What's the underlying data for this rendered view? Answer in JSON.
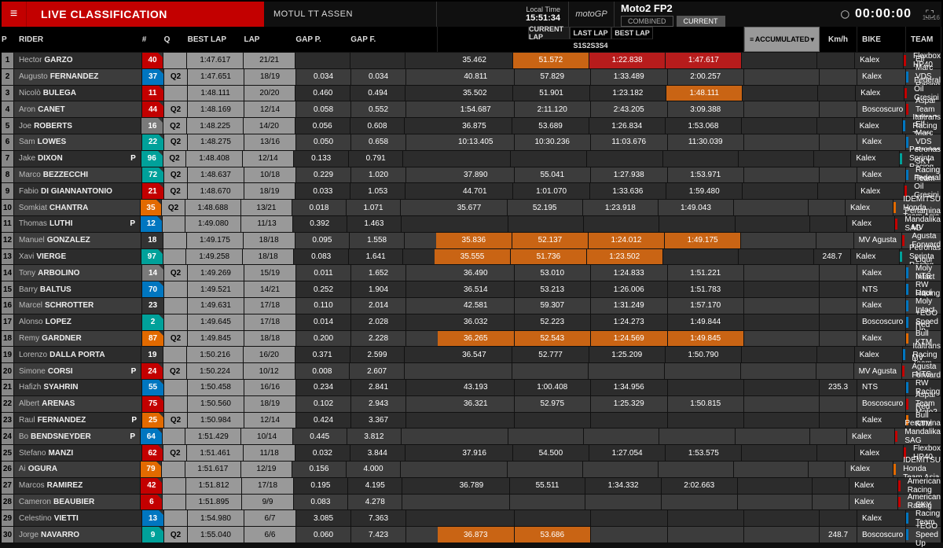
{
  "header": {
    "live_label": "LIVE CLASSIFICATION",
    "event": "MOTUL TT ASSEN",
    "localtime_label": "Local Time",
    "localtime": "15:51:34",
    "brand": "motoGP",
    "session": "Moto2 FP2",
    "tab_combined": "COMBINED",
    "tab_current": "CURRENT",
    "clock": "00:00:00",
    "version": "1.8.16"
  },
  "columns": {
    "p": "P",
    "rider": "RIDER",
    "num": "#",
    "q": "Q",
    "best": "BEST LAP",
    "lap": "LAP",
    "gapp": "GAP P.",
    "gapf": "GAP F.",
    "tab_cur": "CURRENT LAP",
    "tab_last": "LAST LAP",
    "tab_best": "BEST LAP",
    "s1": "S1",
    "s2": "S2",
    "s3": "S3",
    "s4": "S4",
    "acc": "ACCUMULATED",
    "kmh": "Km/h",
    "bike": "BIKE",
    "team": "TEAM"
  },
  "colors": {
    "num": {
      "red": "#c30000",
      "blue": "#0076c0",
      "teal": "#00a19a",
      "orange": "#e26a00",
      "grey": "#7a7a7a",
      "dark": "#333",
      "yellow": "#c9a400",
      "green": "#2e7d32"
    }
  },
  "rows": [
    {
      "p": 1,
      "first": "Hector",
      "last": "GARZO",
      "pf": "",
      "num": 40,
      "numC": "red",
      "q": "",
      "best": "1:47.617",
      "lap": "21/21",
      "gp": "",
      "gf": "",
      "s": [
        {
          "v": "35.462"
        },
        {
          "v": "51.572",
          "c": "orange"
        },
        {
          "v": "1:22.838",
          "c": "red"
        },
        {
          "v": "1:47.617",
          "c": "red"
        }
      ],
      "kmh": "",
      "bike": "Kalex",
      "team": "Flexbox HP40",
      "bar": "#c30000"
    },
    {
      "p": 2,
      "first": "Augusto",
      "last": "FERNANDEZ",
      "pf": "",
      "num": 37,
      "numC": "blue",
      "q": "Q2",
      "best": "1:47.651",
      "lap": "18/19",
      "gp": "0.034",
      "gf": "0.034",
      "s": [
        {
          "v": "40.811"
        },
        {
          "v": "57.829"
        },
        {
          "v": "1:33.489"
        },
        {
          "v": "2:00.257"
        }
      ],
      "kmh": "",
      "bike": "Kalex",
      "team": "Elf Marc VDS Racing Team",
      "bar": "#0076c0"
    },
    {
      "p": 3,
      "first": "Nicolò",
      "last": "BULEGA",
      "pf": "",
      "num": 11,
      "numC": "red",
      "q": "",
      "best": "1:48.111",
      "lap": "20/20",
      "gp": "0.460",
      "gf": "0.494",
      "s": [
        {
          "v": "35.502"
        },
        {
          "v": "51.901"
        },
        {
          "v": "1:23.182"
        },
        {
          "v": "1:48.111",
          "c": "orange"
        }
      ],
      "kmh": "",
      "bike": "Kalex",
      "team": "Federal Oil Gresini Moto2",
      "bar": "#c30000"
    },
    {
      "p": 4,
      "first": "Aron",
      "last": "CANET",
      "pf": "",
      "num": 44,
      "numC": "red",
      "q": "Q2",
      "best": "1:48.169",
      "lap": "12/14",
      "gp": "0.058",
      "gf": "0.552",
      "s": [
        {
          "v": "1:54.687"
        },
        {
          "v": "2:11.120"
        },
        {
          "v": "2:43.205"
        },
        {
          "v": "3:09.388"
        }
      ],
      "kmh": "",
      "bike": "Boscoscuro",
      "team": "Aspar Team Moto2",
      "bar": "#c30000"
    },
    {
      "p": 5,
      "first": "Joe",
      "last": "ROBERTS",
      "pf": "",
      "num": 16,
      "numC": "grey",
      "q": "Q2",
      "best": "1:48.225",
      "lap": "14/20",
      "gp": "0.056",
      "gf": "0.608",
      "s": [
        {
          "v": "36.875"
        },
        {
          "v": "53.689"
        },
        {
          "v": "1:26.834"
        },
        {
          "v": "1:53.068"
        }
      ],
      "kmh": "",
      "bike": "Kalex",
      "team": "Italtrans Racing Team",
      "bar": "#0076c0"
    },
    {
      "p": 6,
      "first": "Sam",
      "last": "LOWES",
      "pf": "",
      "num": 22,
      "numC": "teal",
      "q": "Q2",
      "best": "1:48.275",
      "lap": "13/16",
      "gp": "0.050",
      "gf": "0.658",
      "s": [
        {
          "v": "10:13.405"
        },
        {
          "v": "10:30.236"
        },
        {
          "v": "11:03.676"
        },
        {
          "v": "11:30.039"
        }
      ],
      "kmh": "",
      "bike": "Kalex",
      "team": "Elf Marc VDS Racing Team",
      "bar": "#0076c0"
    },
    {
      "p": 7,
      "first": "Jake",
      "last": "DIXON",
      "pf": "P",
      "num": 96,
      "numC": "teal",
      "q": "Q2",
      "best": "1:48.408",
      "lap": "12/14",
      "gp": "0.133",
      "gf": "0.791",
      "s": [
        {
          "v": ""
        },
        {
          "v": ""
        },
        {
          "v": ""
        },
        {
          "v": ""
        }
      ],
      "kmh": "",
      "bike": "Kalex",
      "team": "Petronas Sprinta Racing",
      "bar": "#00a19a"
    },
    {
      "p": 8,
      "first": "Marco",
      "last": "BEZZECCHI",
      "pf": "",
      "num": 72,
      "numC": "teal",
      "q": "Q2",
      "best": "1:48.637",
      "lap": "10/18",
      "gp": "0.229",
      "gf": "1.020",
      "s": [
        {
          "v": "37.890"
        },
        {
          "v": "55.041"
        },
        {
          "v": "1:27.938"
        },
        {
          "v": "1:53.971"
        }
      ],
      "kmh": "",
      "bike": "Kalex",
      "team": "SKY Racing Team VR46",
      "bar": "#0076c0"
    },
    {
      "p": 9,
      "first": "Fabio",
      "last": "DI GIANNANTONIO",
      "pf": "",
      "num": 21,
      "numC": "red",
      "q": "Q2",
      "best": "1:48.670",
      "lap": "18/19",
      "gp": "0.033",
      "gf": "1.053",
      "s": [
        {
          "v": "44.701"
        },
        {
          "v": "1:01.070"
        },
        {
          "v": "1:33.636"
        },
        {
          "v": "1:59.480"
        }
      ],
      "kmh": "",
      "bike": "Kalex",
      "team": "Federal Oil Gresini Moto2",
      "bar": "#c30000"
    },
    {
      "p": 10,
      "first": "Somkiat",
      "last": "CHANTRA",
      "pf": "",
      "num": 35,
      "numC": "orange",
      "q": "Q2",
      "best": "1:48.688",
      "lap": "13/21",
      "gp": "0.018",
      "gf": "1.071",
      "s": [
        {
          "v": "35.677"
        },
        {
          "v": "52.195"
        },
        {
          "v": "1:23.918"
        },
        {
          "v": "1:49.043"
        }
      ],
      "kmh": "",
      "bike": "Kalex",
      "team": "IDEMITSU Honda Team Asia",
      "bar": "#e26a00"
    },
    {
      "p": 11,
      "first": "Thomas",
      "last": "LUTHI",
      "pf": "P",
      "num": 12,
      "numC": "blue",
      "q": "",
      "best": "1:49.080",
      "lap": "11/13",
      "gp": "0.392",
      "gf": "1.463",
      "s": [
        {
          "v": ""
        },
        {
          "v": ""
        },
        {
          "v": ""
        },
        {
          "v": ""
        }
      ],
      "kmh": "",
      "bike": "Kalex",
      "team": "Pertamina Mandalika SAG Team",
      "bar": "#c30000"
    },
    {
      "p": 12,
      "first": "Manuel",
      "last": "GONZALEZ",
      "pf": "",
      "num": 18,
      "numC": "dark",
      "q": "",
      "best": "1:49.175",
      "lap": "18/18",
      "gp": "0.095",
      "gf": "1.558",
      "s": [
        {
          "v": "35.836",
          "c": "orange"
        },
        {
          "v": "52.137",
          "c": "orange"
        },
        {
          "v": "1:24.012",
          "c": "orange"
        },
        {
          "v": "1:49.175",
          "c": "orange"
        }
      ],
      "kmh": "",
      "bike": "MV Agusta",
      "team": "MV Agusta Forward Racing",
      "bar": "#c30000"
    },
    {
      "p": 13,
      "first": "Xavi",
      "last": "VIERGE",
      "pf": "",
      "num": 97,
      "numC": "teal",
      "q": "",
      "best": "1:49.258",
      "lap": "18/18",
      "gp": "0.083",
      "gf": "1.641",
      "s": [
        {
          "v": "35.555",
          "c": "orange"
        },
        {
          "v": "51.736",
          "c": "orange"
        },
        {
          "v": "1:23.502",
          "c": "orange"
        },
        {
          "v": ""
        }
      ],
      "kmh": "248.7",
      "bike": "Kalex",
      "team": "Petronas Sprinta Racing",
      "bar": "#00a19a"
    },
    {
      "p": 14,
      "first": "Tony",
      "last": "ARBOLINO",
      "pf": "",
      "num": 14,
      "numC": "grey",
      "q": "Q2",
      "best": "1:49.269",
      "lap": "15/19",
      "gp": "0.011",
      "gf": "1.652",
      "s": [
        {
          "v": "36.490"
        },
        {
          "v": "53.010"
        },
        {
          "v": "1:24.833"
        },
        {
          "v": "1:51.221"
        }
      ],
      "kmh": "",
      "bike": "Kalex",
      "team": "Liqui Moly Intact GP",
      "bar": "#0076c0"
    },
    {
      "p": 15,
      "first": "Barry",
      "last": "BALTUS",
      "pf": "",
      "num": 70,
      "numC": "blue",
      "q": "",
      "best": "1:49.521",
      "lap": "14/21",
      "gp": "0.252",
      "gf": "1.904",
      "s": [
        {
          "v": "36.514"
        },
        {
          "v": "53.213"
        },
        {
          "v": "1:26.006"
        },
        {
          "v": "1:51.783"
        }
      ],
      "kmh": "",
      "bike": "NTS",
      "team": "NTS RW Racing GP",
      "bar": "#0076c0"
    },
    {
      "p": 16,
      "first": "Marcel",
      "last": "SCHROTTER",
      "pf": "",
      "num": 23,
      "numC": "dark",
      "q": "",
      "best": "1:49.631",
      "lap": "17/18",
      "gp": "0.110",
      "gf": "2.014",
      "s": [
        {
          "v": "42.581"
        },
        {
          "v": "59.307"
        },
        {
          "v": "1:31.249"
        },
        {
          "v": "1:57.170"
        }
      ],
      "kmh": "",
      "bike": "Kalex",
      "team": "Liqui Moly Intact GP",
      "bar": "#0076c0"
    },
    {
      "p": 17,
      "first": "Alonso",
      "last": "LOPEZ",
      "pf": "",
      "num": 2,
      "numC": "teal",
      "q": "",
      "best": "1:49.645",
      "lap": "17/18",
      "gp": "0.014",
      "gf": "2.028",
      "s": [
        {
          "v": "36.032"
        },
        {
          "v": "52.223"
        },
        {
          "v": "1:24.273"
        },
        {
          "v": "1:49.844"
        }
      ],
      "kmh": "",
      "bike": "Boscoscuro",
      "team": "+EGO Speed Up",
      "bar": "#0076c0"
    },
    {
      "p": 18,
      "first": "Remy",
      "last": "GARDNER",
      "pf": "",
      "num": 87,
      "numC": "orange",
      "q": "Q2",
      "best": "1:49.845",
      "lap": "18/18",
      "gp": "0.200",
      "gf": "2.228",
      "s": [
        {
          "v": "36.265",
          "c": "orange"
        },
        {
          "v": "52.543",
          "c": "orange"
        },
        {
          "v": "1:24.569",
          "c": "orange"
        },
        {
          "v": "1:49.845",
          "c": "orange"
        }
      ],
      "kmh": "",
      "bike": "Kalex",
      "team": "Red Bull KTM Ajo",
      "bar": "#e26a00"
    },
    {
      "p": 19,
      "first": "Lorenzo",
      "last": "DALLA PORTA",
      "pf": "",
      "num": 19,
      "numC": "dark",
      "q": "",
      "best": "1:50.216",
      "lap": "16/20",
      "gp": "0.371",
      "gf": "2.599",
      "s": [
        {
          "v": "36.547"
        },
        {
          "v": "52.777"
        },
        {
          "v": "1:25.209"
        },
        {
          "v": "1:50.790"
        }
      ],
      "kmh": "",
      "bike": "Kalex",
      "team": "Italtrans Racing Team",
      "bar": "#0076c0"
    },
    {
      "p": 20,
      "first": "Simone",
      "last": "CORSI",
      "pf": "P",
      "num": 24,
      "numC": "red",
      "q": "Q2",
      "best": "1:50.224",
      "lap": "10/12",
      "gp": "0.008",
      "gf": "2.607",
      "s": [
        {
          "v": ""
        },
        {
          "v": ""
        },
        {
          "v": ""
        },
        {
          "v": ""
        }
      ],
      "kmh": "",
      "bike": "MV Agusta",
      "team": "MV Agusta Forward Racing",
      "bar": "#c30000"
    },
    {
      "p": 21,
      "first": "Hafizh",
      "last": "SYAHRIN",
      "pf": "",
      "num": 55,
      "numC": "blue",
      "q": "",
      "best": "1:50.458",
      "lap": "16/16",
      "gp": "0.234",
      "gf": "2.841",
      "s": [
        {
          "v": "43.193"
        },
        {
          "v": "1:00.408"
        },
        {
          "v": "1:34.956"
        },
        {
          "v": ""
        }
      ],
      "kmh": "235.3",
      "bike": "NTS",
      "team": "NTS RW Racing GP",
      "bar": "#0076c0"
    },
    {
      "p": 22,
      "first": "Albert",
      "last": "ARENAS",
      "pf": "",
      "num": 75,
      "numC": "red",
      "q": "",
      "best": "1:50.560",
      "lap": "18/19",
      "gp": "0.102",
      "gf": "2.943",
      "s": [
        {
          "v": "36.321"
        },
        {
          "v": "52.975"
        },
        {
          "v": "1:25.329"
        },
        {
          "v": "1:50.815"
        }
      ],
      "kmh": "",
      "bike": "Boscoscuro",
      "team": "Aspar Team Moto2",
      "bar": "#c30000"
    },
    {
      "p": 23,
      "first": "Raul",
      "last": "FERNANDEZ",
      "pf": "P",
      "num": 25,
      "numC": "orange",
      "q": "Q2",
      "best": "1:50.984",
      "lap": "12/14",
      "gp": "0.424",
      "gf": "3.367",
      "s": [
        {
          "v": ""
        },
        {
          "v": ""
        },
        {
          "v": ""
        },
        {
          "v": ""
        }
      ],
      "kmh": "",
      "bike": "Kalex",
      "team": "Red Bull KTM Ajo",
      "bar": "#e26a00"
    },
    {
      "p": 24,
      "first": "Bo",
      "last": "BENDSNEYDER",
      "pf": "P",
      "num": 64,
      "numC": "blue",
      "q": "",
      "best": "1:51.429",
      "lap": "10/14",
      "gp": "0.445",
      "gf": "3.812",
      "s": [
        {
          "v": ""
        },
        {
          "v": ""
        },
        {
          "v": ""
        },
        {
          "v": ""
        }
      ],
      "kmh": "",
      "bike": "Kalex",
      "team": "Pertamina Mandalika SAG Team",
      "bar": "#c30000"
    },
    {
      "p": 25,
      "first": "Stefano",
      "last": "MANZI",
      "pf": "",
      "num": 62,
      "numC": "red",
      "q": "Q2",
      "best": "1:51.461",
      "lap": "11/18",
      "gp": "0.032",
      "gf": "3.844",
      "s": [
        {
          "v": "37.916"
        },
        {
          "v": "54.500"
        },
        {
          "v": "1:27.054"
        },
        {
          "v": "1:53.575"
        }
      ],
      "kmh": "",
      "bike": "Kalex",
      "team": "Flexbox HP40",
      "bar": "#c30000"
    },
    {
      "p": 26,
      "first": "Ai",
      "last": "OGURA",
      "pf": "",
      "num": 79,
      "numC": "orange",
      "q": "",
      "best": "1:51.617",
      "lap": "12/19",
      "gp": "0.156",
      "gf": "4.000",
      "s": [
        {
          "v": ""
        },
        {
          "v": ""
        },
        {
          "v": ""
        },
        {
          "v": ""
        }
      ],
      "kmh": "",
      "bike": "Kalex",
      "team": "IDEMITSU Honda Team Asia",
      "bar": "#e26a00"
    },
    {
      "p": 27,
      "first": "Marcos",
      "last": "RAMIREZ",
      "pf": "",
      "num": 42,
      "numC": "red",
      "q": "",
      "best": "1:51.812",
      "lap": "17/18",
      "gp": "0.195",
      "gf": "4.195",
      "s": [
        {
          "v": "36.789"
        },
        {
          "v": "55.511"
        },
        {
          "v": "1:34.332"
        },
        {
          "v": "2:02.663"
        }
      ],
      "kmh": "",
      "bike": "Kalex",
      "team": "American Racing",
      "bar": "#c30000"
    },
    {
      "p": 28,
      "first": "Cameron",
      "last": "BEAUBIER",
      "pf": "",
      "num": 6,
      "numC": "red",
      "q": "",
      "best": "1:51.895",
      "lap": "9/9",
      "gp": "0.083",
      "gf": "4.278",
      "s": [
        {
          "v": ""
        },
        {
          "v": ""
        },
        {
          "v": ""
        },
        {
          "v": ""
        }
      ],
      "kmh": "",
      "bike": "Kalex",
      "team": "American Racing",
      "bar": "#c30000"
    },
    {
      "p": 29,
      "first": "Celestino",
      "last": "VIETTI",
      "pf": "",
      "num": 13,
      "numC": "blue",
      "q": "",
      "best": "1:54.980",
      "lap": "6/7",
      "gp": "3.085",
      "gf": "7.363",
      "s": [
        {
          "v": ""
        },
        {
          "v": ""
        },
        {
          "v": ""
        },
        {
          "v": ""
        }
      ],
      "kmh": "",
      "bike": "Kalex",
      "team": "SKY Racing Team VR46",
      "bar": "#0076c0"
    },
    {
      "p": 30,
      "first": "Jorge",
      "last": "NAVARRO",
      "pf": "",
      "num": 9,
      "numC": "teal",
      "q": "Q2",
      "best": "1:55.040",
      "lap": "6/6",
      "gp": "0.060",
      "gf": "7.423",
      "s": [
        {
          "v": "36.873",
          "c": "orange"
        },
        {
          "v": "53.686",
          "c": "orange"
        },
        {
          "v": ""
        },
        {
          "v": ""
        }
      ],
      "kmh": "248.7",
      "bike": "Boscoscuro",
      "team": "+EGO Speed Up",
      "bar": "#0076c0"
    }
  ]
}
